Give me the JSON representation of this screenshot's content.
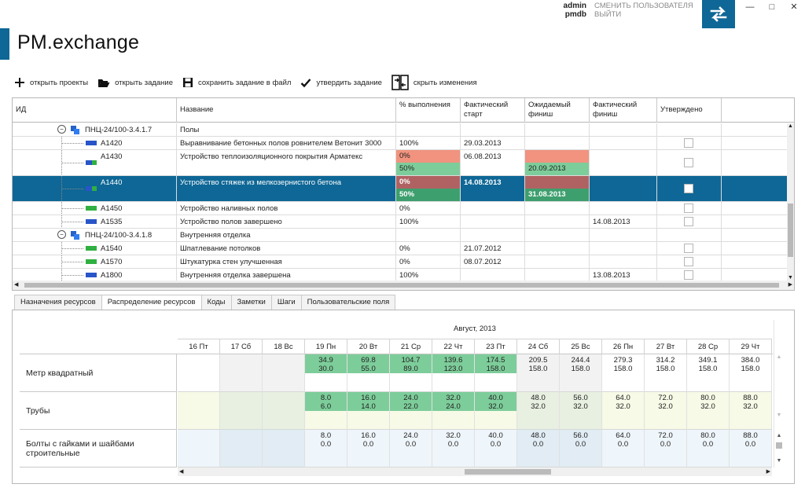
{
  "header": {
    "user": "admin",
    "db": "pmdb",
    "switch_user": "СМЕНИТЬ ПОЛЬЗОВАТЕЛЯ",
    "logout": "ВЫЙТИ",
    "app_title": "PM.exchange",
    "switch_icon": "swap-arrows-icon",
    "accent_color": "#0e6796"
  },
  "toolbar": {
    "open_projects": "открыть проекты",
    "open_task": "открыть задание",
    "save_task": "сохранить задание в файл",
    "approve_task": "утвердить задание",
    "hide_changes": "скрыть изменения"
  },
  "grid": {
    "columns": {
      "id": "ИД",
      "name": "Название",
      "pct": "% выполнения",
      "actual_start": "Фактический старт",
      "expected_finish": "Ожидаемый финиш",
      "actual_finish": "Фактический финиш",
      "approved": "Утверждено"
    },
    "rows": [
      {
        "id": "ПНЦ-24/100-3.4.1.7",
        "name": "Полы",
        "group": true
      },
      {
        "id": "A1420",
        "name": "Выравнивание бетонных полов ровнителем Ветонит 3000",
        "pct": "100%",
        "start": "29.03.2013",
        "exp": "",
        "fin": ""
      },
      {
        "id": "A1430",
        "name": "Устройство теплоизоляционного покрытия Арматекс",
        "pct": "0%",
        "pct2": "50%",
        "start": "06.08.2013",
        "exp": "",
        "exp2": "20.09.2013",
        "fin": ""
      },
      {
        "id": "A1440",
        "name": "Устройство стяжек из мелкозернистого бетона",
        "pct": "0%",
        "pct2": "50%",
        "start": "14.08.2013",
        "exp": "",
        "exp2": "31.08.2013",
        "fin": "",
        "selected": true
      },
      {
        "id": "A1450",
        "name": "Устройство наливных полов",
        "pct": "0%",
        "start": "",
        "exp": "",
        "fin": ""
      },
      {
        "id": "A1535",
        "name": "Устройство полов завершено",
        "pct": "100%",
        "start": "",
        "exp": "",
        "fin": "14.08.2013"
      },
      {
        "id": "ПНЦ-24/100-3.4.1.8",
        "name": "Внутренняя отделка",
        "group": true
      },
      {
        "id": "A1540",
        "name": "Шпатлевание потолков",
        "pct": "0%",
        "start": "21.07.2012",
        "exp": "",
        "fin": ""
      },
      {
        "id": "A1570",
        "name": "Штукатурка стен улучшенная",
        "pct": "0%",
        "start": "08.07.2012",
        "exp": "",
        "fin": ""
      },
      {
        "id": "A1800",
        "name": "Внутренняя отделка завершена",
        "pct": "100%",
        "start": "",
        "exp": "",
        "fin": "13.08.2013"
      }
    ]
  },
  "tabs": [
    "Назначения ресурсов",
    "Распределение ресурсов",
    "Коды",
    "Заметки",
    "Шаги",
    "Пользовательские поля"
  ],
  "resources": {
    "month": "Август, 2013",
    "days": [
      "16 Пт",
      "17 Сб",
      "18 Вс",
      "19 Пн",
      "20 Вт",
      "21 Ср",
      "22 Чт",
      "23 Пт",
      "24 Сб",
      "25 Вс",
      "26 Пн",
      "27 Вт",
      "28 Ср",
      "29 Чт"
    ],
    "rows": [
      {
        "name": "Метр квадратный",
        "top": [
          "",
          "",
          "",
          "34.9",
          "69.8",
          "104.7",
          "139.6",
          "174.5",
          "209.5",
          "244.4",
          "279.3",
          "314.2",
          "349.1",
          "384.0"
        ],
        "bot": [
          "",
          "",
          "",
          "30.0",
          "55.0",
          "89.0",
          "123.0",
          "158.0",
          "158.0",
          "158.0",
          "158.0",
          "158.0",
          "158.0",
          "158.0"
        ]
      },
      {
        "name": "Трубы",
        "top": [
          "",
          "",
          "",
          "8.0",
          "16.0",
          "24.0",
          "32.0",
          "40.0",
          "48.0",
          "56.0",
          "64.0",
          "72.0",
          "80.0",
          "88.0"
        ],
        "bot": [
          "",
          "",
          "",
          "6.0",
          "14.0",
          "22.0",
          "24.0",
          "32.0",
          "32.0",
          "32.0",
          "32.0",
          "32.0",
          "32.0",
          "32.0"
        ]
      },
      {
        "name": "Болты с гайками и шайбами строительные",
        "top": [
          "",
          "",
          "",
          "8.0",
          "16.0",
          "24.0",
          "32.0",
          "40.0",
          "48.0",
          "56.0",
          "64.0",
          "72.0",
          "80.0",
          "88.0"
        ],
        "bot": [
          "",
          "",
          "",
          "0.0",
          "0.0",
          "0.0",
          "0.0",
          "0.0",
          "0.0",
          "0.0",
          "0.0",
          "0.0",
          "0.0",
          "0.0"
        ]
      }
    ]
  },
  "colors": {
    "selection": "#0e6796",
    "alert_red": "#f1937f",
    "ok_green": "#7dcd9a",
    "sel_red": "#b06262",
    "sel_green": "#3e9f6e"
  }
}
